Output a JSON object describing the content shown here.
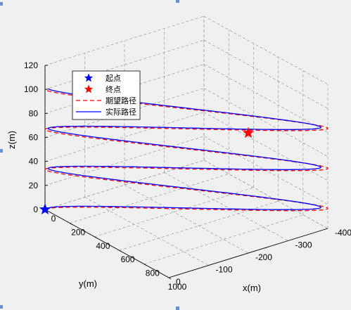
{
  "chart_data": {
    "type": "line3d",
    "xlabel": "x(m)",
    "ylabel": "y(m)",
    "zlabel": "z(m)",
    "xlim": [
      0,
      1000
    ],
    "ylim": [
      -400,
      0
    ],
    "zlim": [
      0,
      120
    ],
    "x_ticks": [
      "0",
      "200",
      "400",
      "600",
      "800",
      "1000"
    ],
    "y_ticks": [
      "0",
      "-100",
      "-200",
      "-300",
      "-400"
    ],
    "z_ticks": [
      "0",
      "20",
      "40",
      "60",
      "80",
      "100",
      "120"
    ],
    "grid": true,
    "legend": {
      "position": "top-left",
      "entries": [
        "起点",
        "终点",
        "期望路径",
        "实际路径"
      ]
    },
    "start_point": {
      "x": 0,
      "y": 0,
      "z": 0,
      "marker": "star",
      "color": "#0000ff"
    },
    "end_point": {
      "x": 1000,
      "y": -200,
      "z": 100,
      "marker": "star",
      "color": "#ff0000"
    },
    "series": [
      {
        "name": "期望路径",
        "style": "dashed",
        "color": "#ff0000",
        "turns": 3,
        "x_range": [
          0,
          1000
        ],
        "y_center": -200,
        "y_radius": 200,
        "z_range": [
          0,
          100
        ]
      },
      {
        "name": "实际路径",
        "style": "solid",
        "color": "#0000ff",
        "turns": 3,
        "x_range": [
          0,
          1000
        ],
        "y_center": -200,
        "y_radius": 200,
        "z_range": [
          0,
          100
        ]
      }
    ]
  }
}
